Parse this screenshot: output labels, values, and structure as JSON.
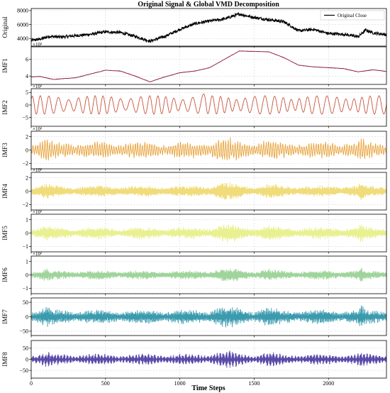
{
  "chart_data": {
    "type": "line",
    "title": "Original Signal & Global VMD Decomposition",
    "xlabel": "Time Steps",
    "xlim": [
      0,
      2390
    ],
    "xticks": [
      0,
      500,
      1000,
      1500,
      2000
    ],
    "xtick_labels": [
      "0",
      "500",
      "1000",
      "1500",
      "2000"
    ],
    "grid": true,
    "legend": {
      "entries": [
        "Original Close"
      ],
      "placement": "top-right",
      "panel": "Original"
    },
    "panels": [
      {
        "name": "Original",
        "ylabel": "Original",
        "color": "#000000",
        "ylim": [
          2900,
          8300
        ],
        "yticks": [
          4000,
          6000,
          8000
        ],
        "ytick_labels": [
          "4000",
          "6000",
          "8000"
        ],
        "scale_label": "",
        "trend_points": [
          [
            0,
            3700
          ],
          [
            60,
            3900
          ],
          [
            120,
            4300
          ],
          [
            200,
            4200
          ],
          [
            300,
            4400
          ],
          [
            400,
            4600
          ],
          [
            500,
            4950
          ],
          [
            600,
            4850
          ],
          [
            700,
            4300
          ],
          [
            800,
            3600
          ],
          [
            900,
            4300
          ],
          [
            1000,
            5300
          ],
          [
            1100,
            6100
          ],
          [
            1200,
            6500
          ],
          [
            1300,
            6800
          ],
          [
            1400,
            7500
          ],
          [
            1500,
            7000
          ],
          [
            1600,
            6700
          ],
          [
            1700,
            6400
          ],
          [
            1800,
            5100
          ],
          [
            1900,
            5300
          ],
          [
            2000,
            4700
          ],
          [
            2100,
            4600
          ],
          [
            2200,
            4250
          ],
          [
            2250,
            5200
          ],
          [
            2300,
            4800
          ],
          [
            2390,
            4550
          ]
        ]
      },
      {
        "name": "IMF1",
        "ylabel": "IMF1",
        "color": "#8b1a3a",
        "ylim": [
          3000,
          7500
        ],
        "yticks": [
          4000,
          6000
        ],
        "ytick_labels": [
          "4",
          "6"
        ],
        "scale_label": "×10³",
        "trend_points": [
          [
            0,
            3900
          ],
          [
            60,
            3950
          ],
          [
            150,
            3600
          ],
          [
            300,
            3800
          ],
          [
            500,
            4700
          ],
          [
            600,
            4600
          ],
          [
            700,
            4000
          ],
          [
            800,
            3300
          ],
          [
            880,
            3800
          ],
          [
            1000,
            4400
          ],
          [
            1100,
            4600
          ],
          [
            1200,
            5000
          ],
          [
            1300,
            6000
          ],
          [
            1400,
            7000
          ],
          [
            1600,
            6900
          ],
          [
            1700,
            6200
          ],
          [
            1800,
            5300
          ],
          [
            1900,
            5100
          ],
          [
            2000,
            5000
          ],
          [
            2100,
            4900
          ],
          [
            2200,
            4500
          ],
          [
            2300,
            4750
          ],
          [
            2390,
            4550
          ]
        ]
      },
      {
        "name": "IMF2",
        "ylabel": "IMF2",
        "color": "#c8553d",
        "ylim": [
          -850,
          650
        ],
        "yticks": [
          -500,
          0,
          500
        ],
        "ytick_labels": [
          "−5",
          "0",
          "5"
        ],
        "scale_label": "×10²",
        "amplitude": 370,
        "period": 60
      },
      {
        "name": "IMF3",
        "ylabel": "IMF3",
        "color": "#e8a33a",
        "ylim": [
          -280,
          280
        ],
        "yticks": [
          -200,
          0,
          200
        ],
        "ytick_labels": [
          "−2",
          "0",
          "2"
        ],
        "scale_label": "×10²",
        "amplitude": 110,
        "period": 16
      },
      {
        "name": "IMF4",
        "ylabel": "IMF4",
        "color": "#f0dc7a",
        "ylim": [
          -280,
          280
        ],
        "yticks": [
          -200,
          0,
          200
        ],
        "ytick_labels": [
          "−2",
          "0",
          "2"
        ],
        "scale_label": "×10²",
        "amplitude": 75,
        "period": 5
      },
      {
        "name": "IMF5",
        "ylabel": "IMF5",
        "color": "#e8f090",
        "ylim": [
          -140,
          140
        ],
        "yticks": [
          -100,
          0,
          100
        ],
        "ytick_labels": [
          "−1",
          "0",
          "1"
        ],
        "scale_label": "×10²",
        "amplitude": 40,
        "period": 3.2
      },
      {
        "name": "IMF6",
        "ylabel": "IMF6",
        "color": "#9fd49a",
        "ylim": [
          -140,
          140
        ],
        "yticks": [
          -100,
          0,
          100
        ],
        "ytick_labels": [
          "−1",
          "0",
          "1"
        ],
        "scale_label": "×10²",
        "amplitude": 30,
        "period": 2.6
      },
      {
        "name": "IMF7",
        "ylabel": "IMF7",
        "color": "#3a9aae",
        "ylim": [
          -65,
          65
        ],
        "yticks": [
          -50,
          0,
          50
        ],
        "ytick_labels": [
          "−50",
          "0",
          "50"
        ],
        "scale_label": "",
        "amplitude": 22,
        "period": 2.2
      },
      {
        "name": "IMF8",
        "ylabel": "IMF8",
        "color": "#5a4aa8",
        "ylim": [
          -85,
          85
        ],
        "yticks": [
          -50,
          0,
          50
        ],
        "ytick_labels": [
          "−50",
          "0",
          "50"
        ],
        "scale_label": "",
        "amplitude": 22,
        "period": 2.1
      }
    ]
  }
}
